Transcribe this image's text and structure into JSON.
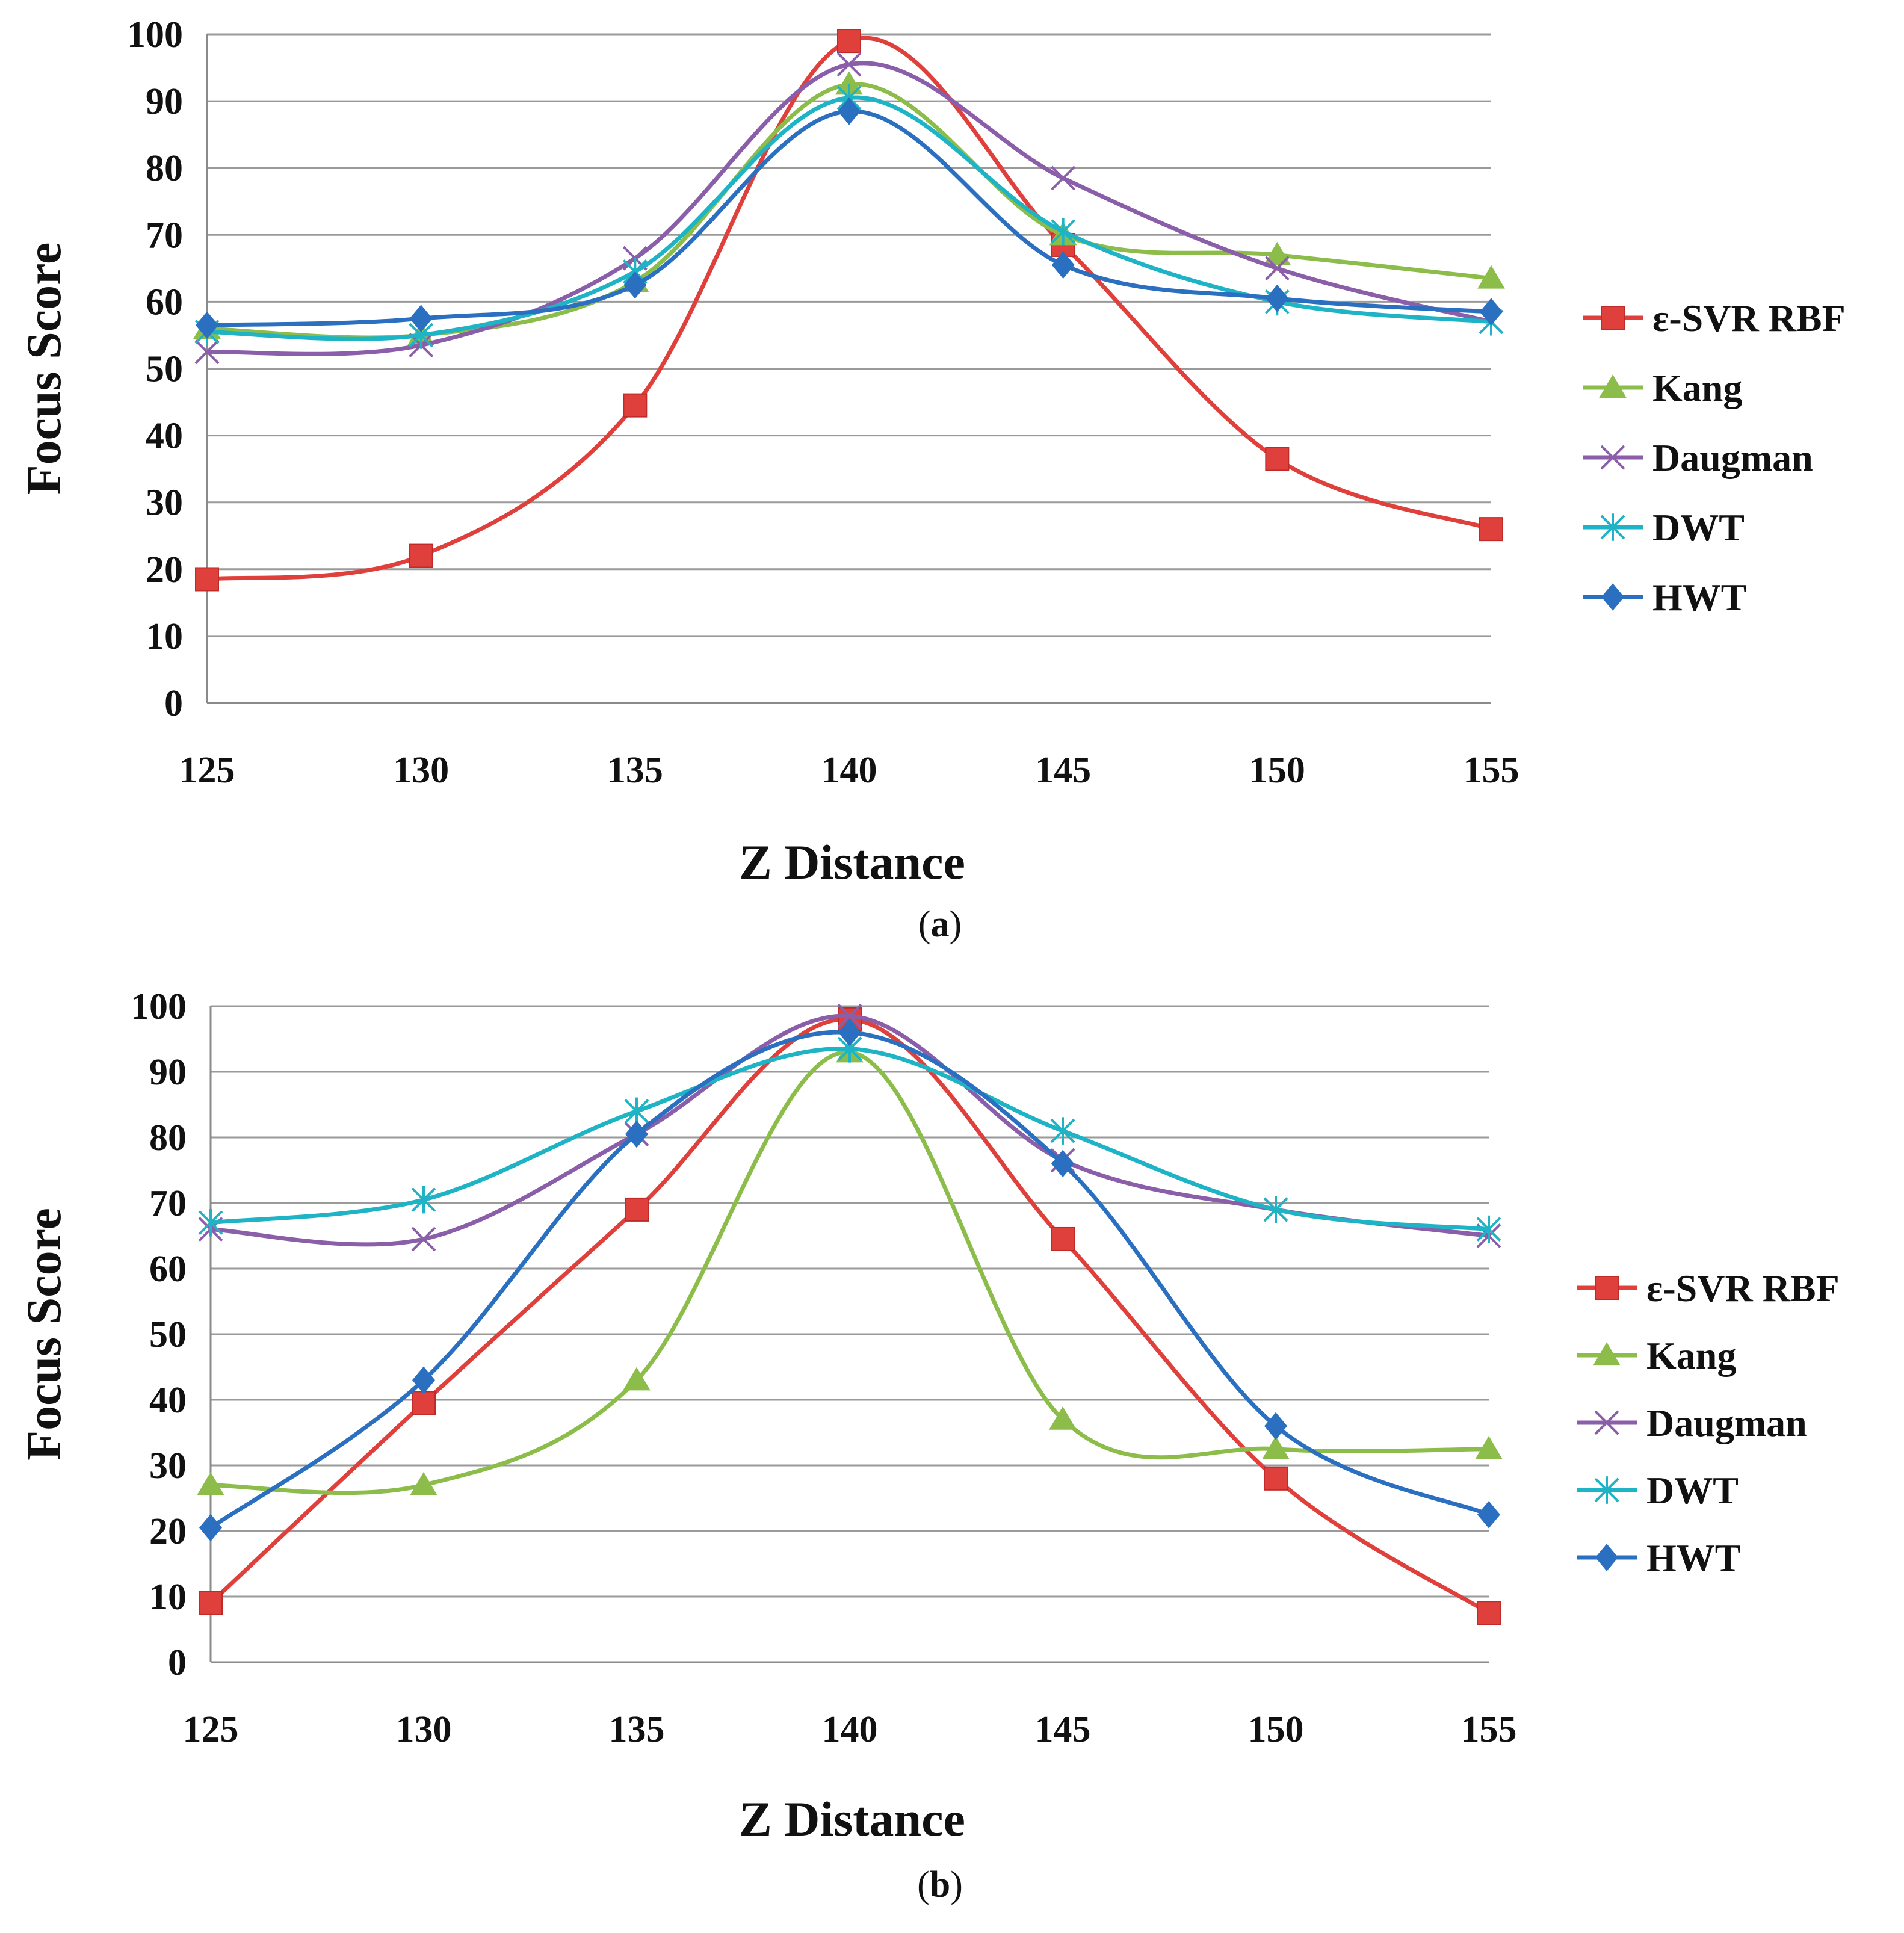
{
  "chart_data": [
    {
      "type": "line",
      "panel": "a",
      "x": [
        125,
        130,
        135,
        140,
        145,
        150,
        155
      ],
      "xlabel": "Z Distance",
      "ylabel": "Focus Score",
      "ylim": [
        0,
        100
      ],
      "yticks": [
        0,
        10,
        20,
        30,
        40,
        50,
        60,
        70,
        80,
        90,
        100
      ],
      "grid": true,
      "legend": "right",
      "caption": {
        "open": "(",
        "letter": "a",
        "close": ")"
      },
      "series": [
        {
          "name": "ε-SVR RBF",
          "color": "#e0403c",
          "marker": "square",
          "values": [
            18.5,
            22,
            44.5,
            99,
            68.5,
            36.5,
            26
          ]
        },
        {
          "name": "Kang",
          "color": "#8cbd4a",
          "marker": "triangle",
          "values": [
            56,
            55,
            63,
            92.5,
            70,
            67,
            63.5
          ]
        },
        {
          "name": "Daugman",
          "color": "#8a5ea8",
          "marker": "x",
          "values": [
            52.5,
            53.5,
            66.5,
            95.5,
            78.5,
            65,
            57
          ]
        },
        {
          "name": "DWT",
          "color": "#1fb3c6",
          "marker": "asterisk",
          "values": [
            55.5,
            55,
            64.5,
            90.5,
            70.5,
            60,
            57
          ]
        },
        {
          "name": "HWT",
          "color": "#2a6fc0",
          "marker": "diamond",
          "values": [
            56.5,
            57.5,
            62.5,
            88.5,
            65.5,
            60.5,
            58.5
          ]
        }
      ]
    },
    {
      "type": "line",
      "panel": "b",
      "x": [
        125,
        130,
        135,
        140,
        145,
        150,
        155
      ],
      "xlabel": "Z Distance",
      "ylabel": "Focus Score",
      "ylim": [
        0,
        100
      ],
      "yticks": [
        0,
        10,
        20,
        30,
        40,
        50,
        60,
        70,
        80,
        90,
        100
      ],
      "grid": true,
      "legend": "right",
      "caption": {
        "open": "(",
        "letter": "b",
        "close": ")"
      },
      "series": [
        {
          "name": "ε-SVR RBF",
          "color": "#e0403c",
          "marker": "square",
          "values": [
            9,
            39.5,
            69,
            98,
            64.5,
            28,
            7.5
          ]
        },
        {
          "name": "Kang",
          "color": "#8cbd4a",
          "marker": "triangle",
          "values": [
            27,
            27,
            43,
            93,
            37,
            32.5,
            32.5
          ]
        },
        {
          "name": "Daugman",
          "color": "#8a5ea8",
          "marker": "x",
          "values": [
            66,
            64.5,
            80.5,
            98.5,
            76.5,
            69,
            65
          ]
        },
        {
          "name": "DWT",
          "color": "#1fb3c6",
          "marker": "asterisk",
          "values": [
            67,
            70.5,
            84,
            93.5,
            81,
            69,
            66
          ]
        },
        {
          "name": "HWT",
          "color": "#2a6fc0",
          "marker": "diamond",
          "values": [
            20.5,
            43,
            80.5,
            96,
            76,
            36,
            22.5
          ]
        }
      ]
    }
  ]
}
